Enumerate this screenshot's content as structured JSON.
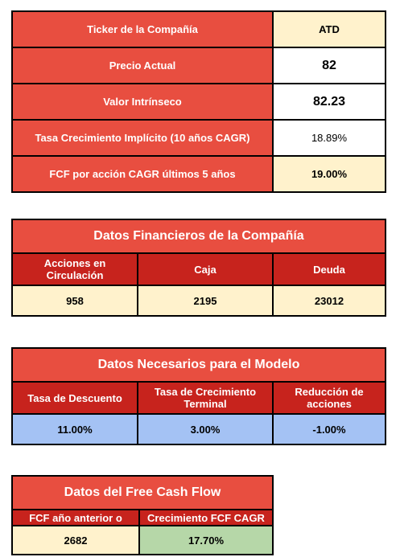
{
  "summary": {
    "rows": [
      {
        "label": "Ticker de la Compañía",
        "value": "ATD"
      },
      {
        "label": "Precio Actual",
        "value": "82"
      },
      {
        "label": "Valor Intrínseco",
        "value": "82.23"
      },
      {
        "label": "Tasa Crecimiento Implícito (10 años CAGR)",
        "value": "18.89%"
      },
      {
        "label": "FCF por acción CAGR últimos 5 años",
        "value": "19.00%"
      }
    ]
  },
  "financieros": {
    "title": "Datos Financieros de la Compañía",
    "headers": [
      "Acciones en Circulación",
      "Caja",
      "Deuda"
    ],
    "values": [
      "958",
      "2195",
      "23012"
    ]
  },
  "modelo": {
    "title": "Datos Necesarios para el Modelo",
    "headers": [
      "Tasa de Descuento",
      "Tasa de Crecimiento Terminal",
      "Reducción de acciones"
    ],
    "values": [
      "11.00%",
      "3.00%",
      "-1.00%"
    ]
  },
  "fcf": {
    "title": "Datos del Free Cash Flow",
    "headers": [
      "FCF año anterior o",
      "Crecimiento FCF CAGR"
    ],
    "values": [
      "2682",
      "17.70%"
    ]
  },
  "colors": {
    "header_red": "#e84e40",
    "subheader_dark_red": "#c7231d",
    "cream": "#fff2cc",
    "blue": "#a4c2f4",
    "green": "#b6d7a8"
  }
}
